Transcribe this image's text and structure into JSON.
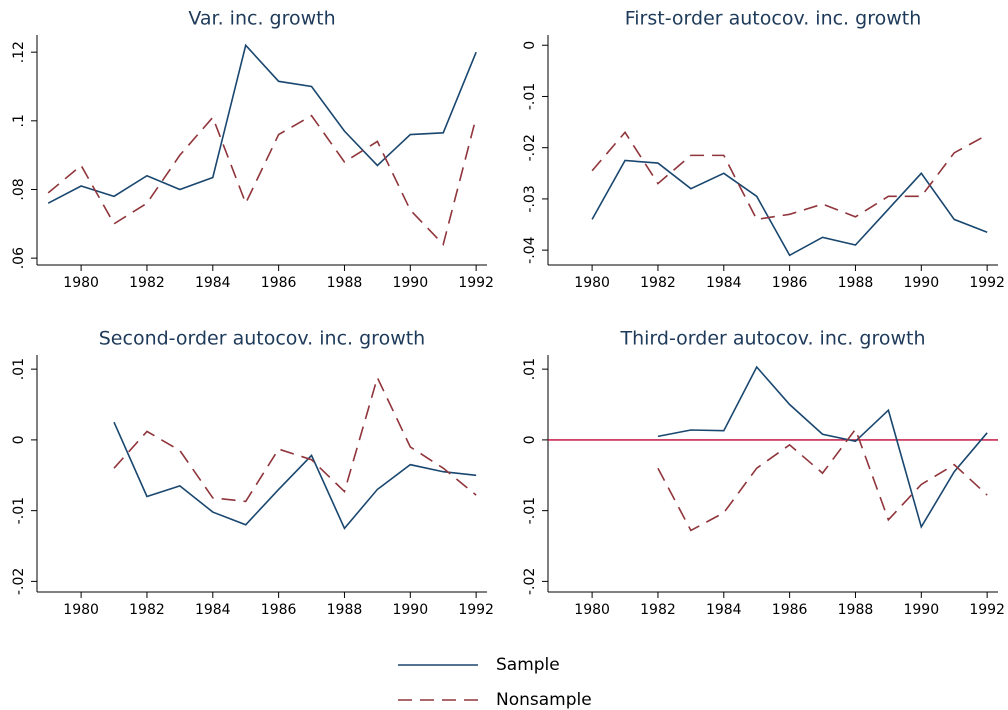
{
  "chart_data": [
    {
      "type": "line",
      "title": "Var. inc. growth",
      "x": [
        1979,
        1980,
        1981,
        1982,
        1983,
        1984,
        1985,
        1986,
        1987,
        1988,
        1989,
        1990,
        1991,
        1992
      ],
      "series": [
        {
          "name": "Sample",
          "color": "#1a476f",
          "dashed": false,
          "values": [
            0.076,
            0.081,
            0.078,
            0.084,
            0.08,
            0.0835,
            0.122,
            0.1115,
            0.11,
            0.097,
            0.087,
            0.096,
            0.0965,
            0.12
          ]
        },
        {
          "name": "Nonsample",
          "color": "#90353b",
          "dashed": true,
          "values": [
            0.079,
            0.087,
            0.07,
            0.076,
            0.09,
            0.101,
            0.076,
            0.096,
            0.1015,
            0.088,
            0.094,
            0.074,
            0.064,
            0.101
          ]
        }
      ],
      "xlim": [
        1978.66,
        1992.33
      ],
      "xticks": [
        1980,
        1982,
        1984,
        1986,
        1988,
        1990,
        1992
      ],
      "ylim": [
        0.058,
        0.125
      ],
      "yticks": [
        {
          "value": 0.06,
          "label": ".06"
        },
        {
          "value": 0.08,
          "label": ".08"
        },
        {
          "value": 0.1,
          "label": ".1"
        },
        {
          "value": 0.12,
          "label": ".12"
        }
      ]
    },
    {
      "type": "line",
      "title": "First-order autocov. inc. growth",
      "x": [
        1980,
        1981,
        1982,
        1983,
        1984,
        1985,
        1986,
        1987,
        1988,
        1989,
        1990,
        1991,
        1992
      ],
      "series": [
        {
          "name": "Sample",
          "color": "#1a476f",
          "dashed": false,
          "values": [
            -0.034,
            -0.0225,
            -0.023,
            -0.028,
            -0.025,
            -0.0295,
            -0.041,
            -0.0375,
            -0.039,
            -0.032,
            -0.025,
            -0.034,
            -0.0365
          ]
        },
        {
          "name": "Nonsample",
          "color": "#90353b",
          "dashed": true,
          "values": [
            -0.0245,
            -0.017,
            -0.027,
            -0.0215,
            -0.0215,
            -0.034,
            -0.033,
            -0.031,
            -0.0335,
            -0.0295,
            -0.0295,
            -0.021,
            -0.0175
          ]
        }
      ],
      "xlim": [
        1978.66,
        1992.33
      ],
      "xticks": [
        1980,
        1982,
        1984,
        1986,
        1988,
        1990,
        1992
      ],
      "ylim": [
        -0.0429,
        0.002
      ],
      "yticks": [
        {
          "value": -0.04,
          "label": "-.04"
        },
        {
          "value": -0.03,
          "label": "-.03"
        },
        {
          "value": -0.02,
          "label": "-.02"
        },
        {
          "value": -0.01,
          "label": "-.01"
        },
        0
      ]
    },
    {
      "type": "line",
      "title": "Second-order autocov. inc. growth",
      "x": [
        1981,
        1982,
        1983,
        1984,
        1985,
        1986,
        1987,
        1988,
        1989,
        1990,
        1991,
        1992
      ],
      "series": [
        {
          "name": "Sample",
          "color": "#1a476f",
          "dashed": false,
          "values": [
            0.0025,
            -0.008,
            -0.0065,
            -0.0102,
            -0.012,
            -0.007,
            -0.0022,
            -0.0125,
            -0.007,
            -0.0035,
            -0.0045,
            -0.005
          ]
        },
        {
          "name": "Nonsample",
          "color": "#90353b",
          "dashed": true,
          "values": [
            -0.004,
            0.0012,
            -0.0015,
            -0.0082,
            -0.0087,
            -0.0013,
            -0.0028,
            -0.0073,
            0.0088,
            -0.001,
            -0.004,
            -0.0078
          ]
        }
      ],
      "xlim": [
        1978.66,
        1992.33
      ],
      "xticks": [
        1980,
        1982,
        1984,
        1986,
        1988,
        1990,
        1992
      ],
      "ylim": [
        -0.0215,
        0.012
      ],
      "yticks": [
        {
          "value": -0.02,
          "label": "-.02"
        },
        {
          "value": -0.01,
          "label": "-.01"
        },
        0,
        {
          "value": 0.01,
          "label": ".01"
        }
      ]
    },
    {
      "type": "line",
      "title": "Third-order autocov. inc. growth",
      "x": [
        1982,
        1983,
        1984,
        1985,
        1986,
        1987,
        1988,
        1989,
        1990,
        1991,
        1992
      ],
      "series": [
        {
          "name": "Sample",
          "color": "#1a476f",
          "dashed": false,
          "values": [
            0.0005,
            0.0014,
            0.0013,
            0.0103,
            0.005,
            0.0008,
            -0.0002,
            0.0042,
            -0.0123,
            -0.0045,
            0.001
          ]
        },
        {
          "name": "Nonsample",
          "color": "#90353b",
          "dashed": true,
          "values": [
            -0.004,
            -0.0128,
            -0.0103,
            -0.004,
            -0.0007,
            -0.0047,
            0.0015,
            -0.0113,
            -0.0063,
            -0.0035,
            -0.0078
          ]
        }
      ],
      "xlim": [
        1978.66,
        1992.33
      ],
      "xticks": [
        1980,
        1982,
        1984,
        1986,
        1988,
        1990,
        1992
      ],
      "ylim": [
        -0.0215,
        0.012
      ],
      "yticks": [
        {
          "value": -0.02,
          "label": "-.02"
        },
        {
          "value": -0.01,
          "label": "-.01"
        },
        0,
        {
          "value": 0.01,
          "label": ".01"
        }
      ],
      "yline": 0,
      "yline_color": "#c10534"
    }
  ]
}
